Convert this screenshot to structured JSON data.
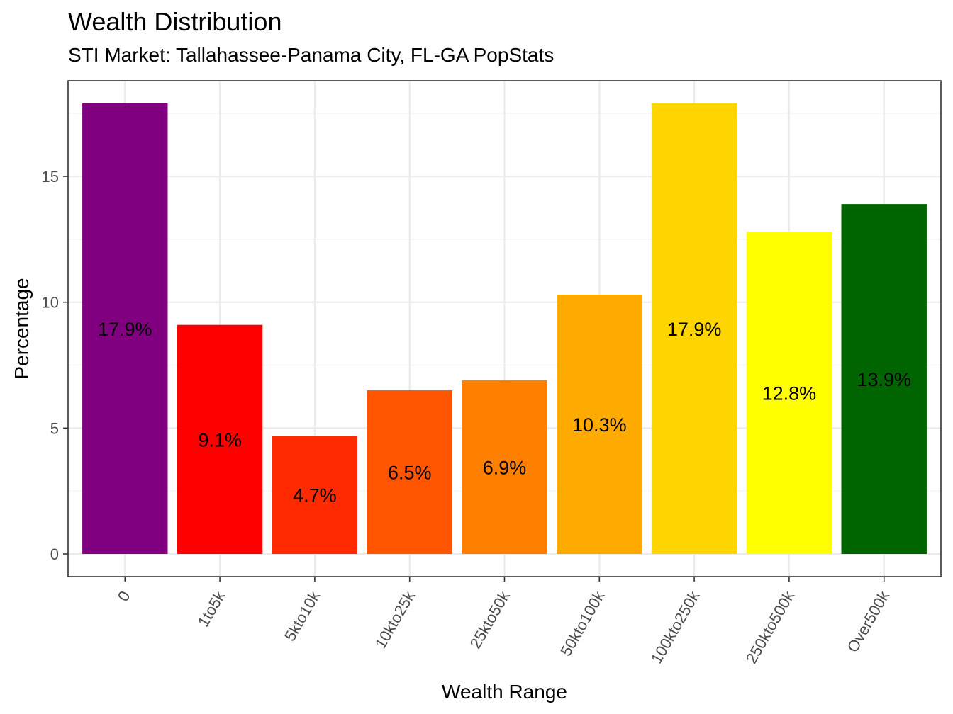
{
  "chart_data": {
    "type": "bar",
    "title": "Wealth Distribution",
    "subtitle": "STI Market: Tallahassee-Panama City, FL-GA PopStats",
    "xlabel": "Wealth Range",
    "ylabel": "Percentage",
    "categories": [
      "0",
      "1to5k",
      "5kto10k",
      "10kto25k",
      "25kto50k",
      "50kto100k",
      "100kto250k",
      "250kto500k",
      "Over500k"
    ],
    "values": [
      17.9,
      9.1,
      4.7,
      6.5,
      6.9,
      10.3,
      17.9,
      12.8,
      13.9
    ],
    "labels": [
      "17.9%",
      "9.1%",
      "4.7%",
      "6.5%",
      "6.9%",
      "10.3%",
      "17.9%",
      "12.8%",
      "13.9%"
    ],
    "colors": [
      "#800080",
      "#FF0000",
      "#FF2A00",
      "#FF5500",
      "#FF8000",
      "#FFAA00",
      "#FFD500",
      "#FFFF00",
      "#006400"
    ],
    "y_ticks": [
      0,
      5,
      10,
      15
    ],
    "ylim": [
      -0.9,
      18.8
    ],
    "grid": true,
    "legend": "none"
  }
}
